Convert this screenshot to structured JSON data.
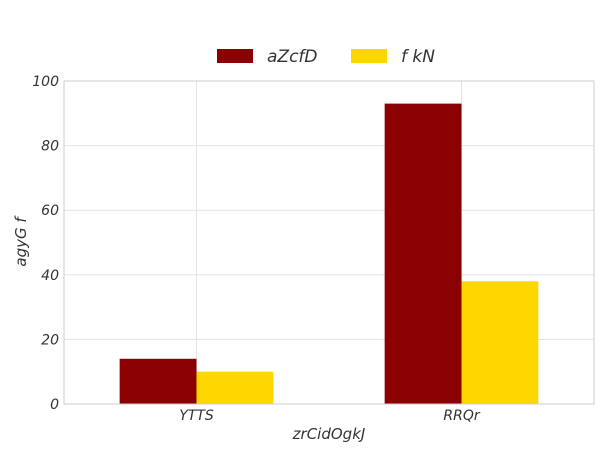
{
  "chart_data": {
    "type": "bar",
    "title": "",
    "xlabel": "zrCidOgkJ",
    "ylabel": "agyG f",
    "categories": [
      "YTTS",
      "RRQr"
    ],
    "series": [
      {
        "name": "aZcfD",
        "values": [
          14,
          93
        ],
        "color": "#8b0000"
      },
      {
        "name": "f kN",
        "values": [
          10,
          38
        ],
        "color": "#ffd700"
      }
    ],
    "ylim": [
      0,
      100
    ],
    "yticks": [
      0,
      20,
      40,
      60,
      80,
      100
    ],
    "grid": true,
    "legend": "top-center"
  }
}
